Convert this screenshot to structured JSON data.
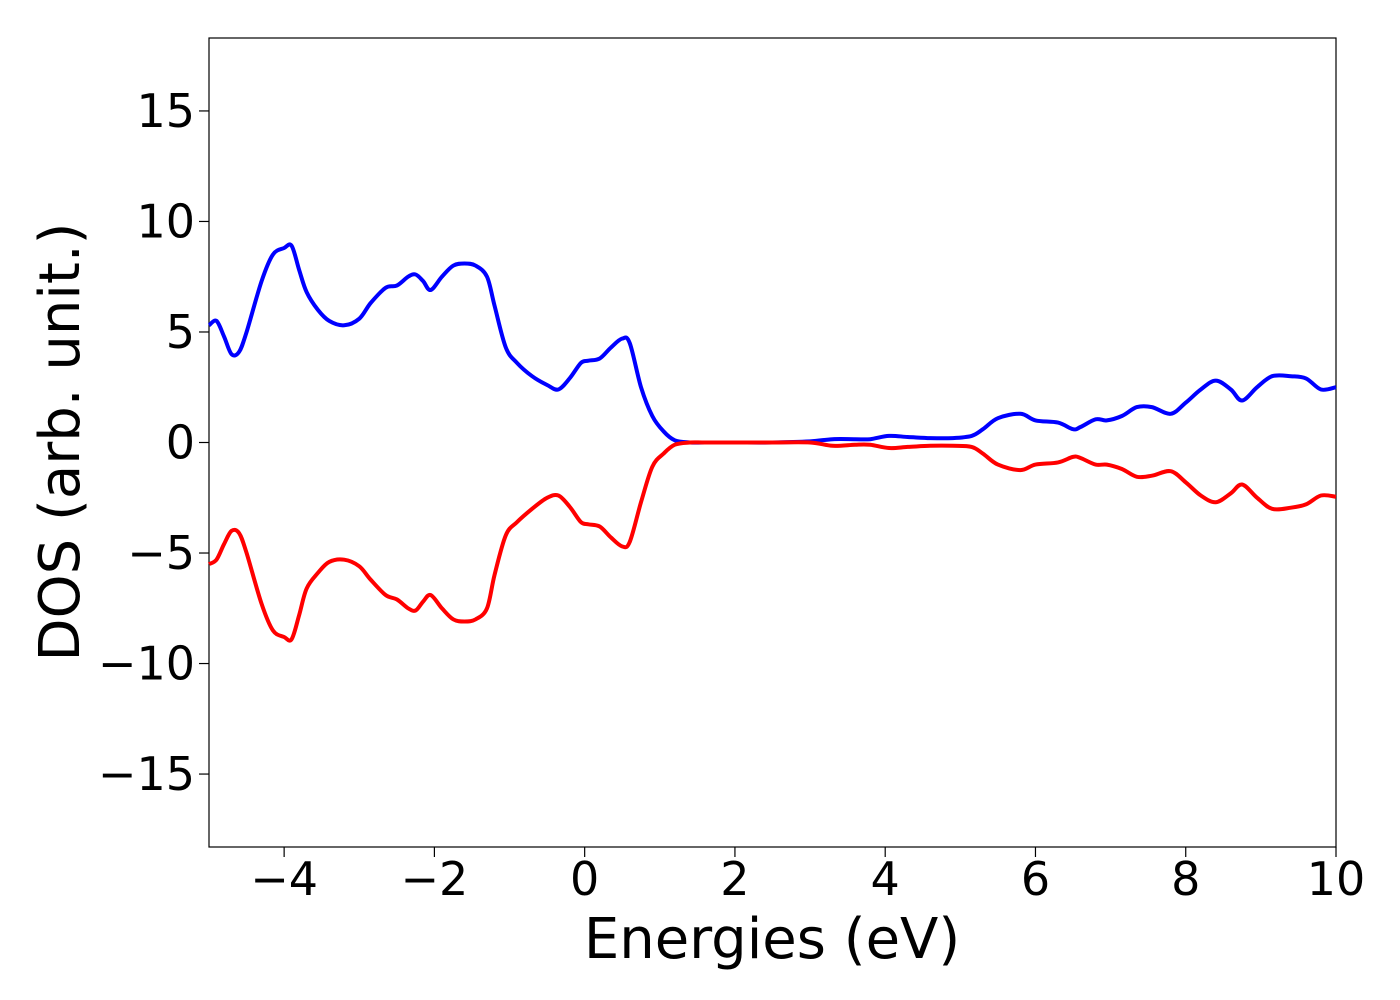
{
  "chart_data": {
    "type": "line",
    "title": "",
    "xlabel": "Energies (eV)",
    "ylabel": "DOS (arb. unit.)",
    "xlim": [
      -5,
      10
    ],
    "ylim": [
      -18.3,
      18.3
    ],
    "grid": false,
    "legend": "none",
    "x_ticks": [
      -4,
      -2,
      0,
      2,
      4,
      6,
      8,
      10
    ],
    "x_tick_labels": [
      "−4",
      "−2",
      "0",
      "2",
      "4",
      "6",
      "8",
      "10"
    ],
    "y_ticks": [
      15,
      10,
      5,
      0,
      -5,
      -10,
      -15
    ],
    "y_tick_labels": [
      "15",
      "10",
      "5",
      "0",
      "−5",
      "−10",
      "−15"
    ],
    "series": [
      {
        "color": "#0000ff",
        "x": [
          -5.0,
          -4.9,
          -4.8,
          -4.7,
          -4.6,
          -4.5,
          -4.3,
          -4.15,
          -4.0,
          -3.9,
          -3.8,
          -3.7,
          -3.55,
          -3.4,
          -3.2,
          -3.0,
          -2.85,
          -2.65,
          -2.5,
          -2.35,
          -2.25,
          -2.15,
          -2.05,
          -1.9,
          -1.75,
          -1.6,
          -1.45,
          -1.3,
          -1.2,
          -1.05,
          -0.9,
          -0.7,
          -0.5,
          -0.35,
          -0.2,
          -0.05,
          0.05,
          0.2,
          0.35,
          0.5,
          0.6,
          0.75,
          0.9,
          1.05,
          1.2,
          1.4,
          1.6,
          2.0,
          2.5,
          3.0,
          3.3,
          3.6,
          3.8,
          4.05,
          4.3,
          4.6,
          4.9,
          5.15,
          5.3,
          5.5,
          5.8,
          6.0,
          6.3,
          6.5,
          6.6,
          6.8,
          6.95,
          7.15,
          7.35,
          7.55,
          7.8,
          8.0,
          8.2,
          8.4,
          8.6,
          8.75,
          8.95,
          9.15,
          9.4,
          9.6,
          9.8,
          10.0
        ],
        "y": [
          5.3,
          5.5,
          4.8,
          4.0,
          4.1,
          5.0,
          7.3,
          8.5,
          8.8,
          8.9,
          7.8,
          6.8,
          6.0,
          5.5,
          5.3,
          5.6,
          6.3,
          7.0,
          7.1,
          7.5,
          7.6,
          7.3,
          6.9,
          7.5,
          8.0,
          8.1,
          8.0,
          7.5,
          6.2,
          4.3,
          3.6,
          3.0,
          2.6,
          2.4,
          2.9,
          3.6,
          3.7,
          3.8,
          4.3,
          4.7,
          4.5,
          2.5,
          1.2,
          0.5,
          0.1,
          0.0,
          0.0,
          0.0,
          0.0,
          0.05,
          0.15,
          0.15,
          0.15,
          0.3,
          0.25,
          0.2,
          0.2,
          0.3,
          0.6,
          1.1,
          1.3,
          1.0,
          0.9,
          0.6,
          0.7,
          1.05,
          1.0,
          1.2,
          1.6,
          1.6,
          1.3,
          1.8,
          2.4,
          2.8,
          2.4,
          1.9,
          2.5,
          3.0,
          3.0,
          2.9,
          2.4,
          2.5
        ]
      },
      {
        "color": "#ff0000",
        "x": [
          -5.0,
          -4.9,
          -4.8,
          -4.7,
          -4.6,
          -4.5,
          -4.3,
          -4.15,
          -4.0,
          -3.9,
          -3.8,
          -3.7,
          -3.55,
          -3.4,
          -3.2,
          -3.0,
          -2.85,
          -2.65,
          -2.5,
          -2.35,
          -2.25,
          -2.15,
          -2.05,
          -1.9,
          -1.75,
          -1.6,
          -1.45,
          -1.3,
          -1.2,
          -1.05,
          -0.9,
          -0.7,
          -0.5,
          -0.35,
          -0.2,
          -0.05,
          0.05,
          0.2,
          0.35,
          0.5,
          0.6,
          0.75,
          0.9,
          1.05,
          1.2,
          1.4,
          1.6,
          2.0,
          2.5,
          3.0,
          3.3,
          3.6,
          3.8,
          4.05,
          4.3,
          4.6,
          4.9,
          5.15,
          5.3,
          5.5,
          5.8,
          6.0,
          6.3,
          6.5,
          6.6,
          6.8,
          6.95,
          7.15,
          7.35,
          7.55,
          7.8,
          8.0,
          8.2,
          8.4,
          8.6,
          8.75,
          8.95,
          9.15,
          9.4,
          9.6,
          9.8,
          10.0
        ],
        "y": [
          -5.5,
          -5.3,
          -4.6,
          -4.0,
          -4.1,
          -5.0,
          -7.3,
          -8.5,
          -8.8,
          -8.9,
          -7.8,
          -6.6,
          -5.9,
          -5.4,
          -5.3,
          -5.6,
          -6.2,
          -6.9,
          -7.1,
          -7.5,
          -7.6,
          -7.2,
          -6.9,
          -7.5,
          -8.0,
          -8.1,
          -8.0,
          -7.5,
          -6.0,
          -4.2,
          -3.6,
          -3.0,
          -2.5,
          -2.4,
          -2.9,
          -3.6,
          -3.7,
          -3.8,
          -4.3,
          -4.7,
          -4.5,
          -2.7,
          -1.1,
          -0.5,
          -0.1,
          0.0,
          0.0,
          0.0,
          0.0,
          0.0,
          -0.15,
          -0.1,
          -0.1,
          -0.25,
          -0.2,
          -0.15,
          -0.15,
          -0.2,
          -0.5,
          -1.0,
          -1.25,
          -1.0,
          -0.9,
          -0.65,
          -0.7,
          -1.0,
          -1.0,
          -1.2,
          -1.55,
          -1.5,
          -1.3,
          -1.8,
          -2.4,
          -2.7,
          -2.3,
          -1.9,
          -2.5,
          -3.0,
          -2.95,
          -2.8,
          -2.4,
          -2.45
        ]
      }
    ]
  }
}
